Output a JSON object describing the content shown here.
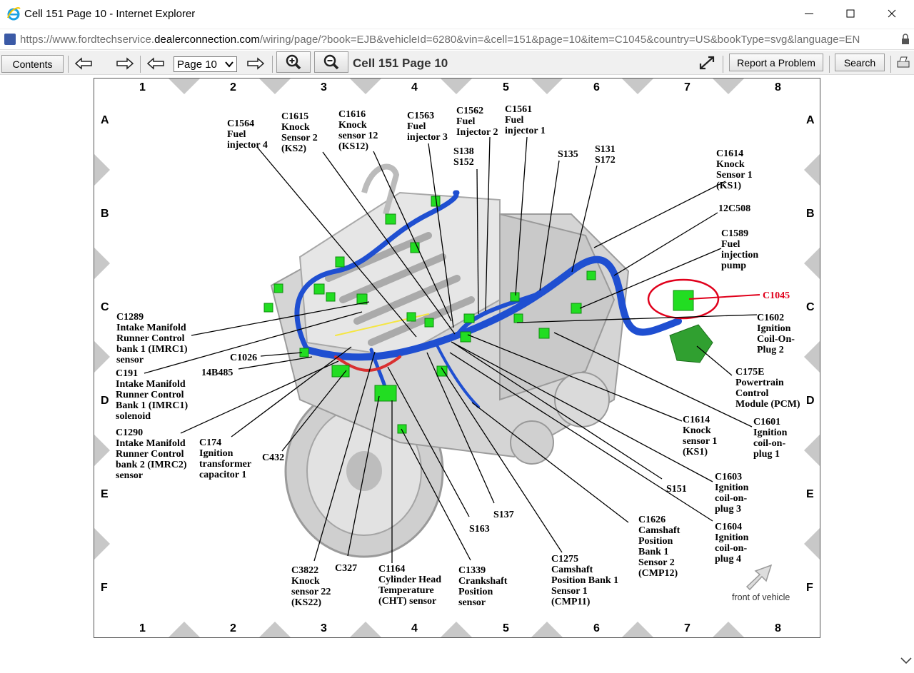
{
  "window": {
    "title": "Cell 151 Page 10 - Internet Explorer"
  },
  "address": {
    "prefix": "https://www.fordtechservice.",
    "domain": "dealerconnection.com",
    "suffix": "/wiring/page/?book=EJB&vehicleId=6280&vin=&cell=151&page=10&item=C1045&country=US&bookType=svg&language=EN"
  },
  "toolbar": {
    "contents_label": "Contents",
    "page_value": "Page 10",
    "cell_title": "Cell 151 Page 10",
    "report_label": "Report a Problem",
    "search_label": "Search"
  },
  "diagram": {
    "columns": [
      "1",
      "2",
      "3",
      "4",
      "5",
      "6",
      "7",
      "8"
    ],
    "rows": [
      "A",
      "B",
      "C",
      "D",
      "E",
      "F"
    ],
    "front_of_vehicle": "front of vehicle",
    "labels": {
      "c1564": "C1564\nFuel\ninjector 4",
      "c1615": "C1615\nKnock\nSensor 2\n(KS2)",
      "c1616": "C1616\nKnock\nsensor 12\n(KS12)",
      "c1563": "C1563\nFuel\ninjector 3",
      "c1562": "C1562\nFuel\nInjector 2",
      "c1561": "C1561\nFuel\ninjector 1",
      "s138": "S138\nS152",
      "s135": "S135",
      "s131": "S131\nS172",
      "c1614a": "C1614\nKnock\nSensor 1\n(KS1)",
      "c12c508": "12C508",
      "c1589": "C1589\nFuel\ninjection\npump",
      "c1045": "C1045",
      "c1602": "C1602\nIgnition\nCoil-On-\nPlug 2",
      "c175e": "C175E\nPowertrain\nControl\nModule (PCM)",
      "c1601": "C1601\nIgnition\ncoil-on-\nplug 1",
      "c1614b": "C1614\nKnock\nsensor 1\n(KS1)",
      "c1603": "C1603\nIgnition\ncoil-on-\nplug 3",
      "s151": "S151",
      "c1604": "C1604\nIgnition\ncoil-on-\nplug 4",
      "c1626": "C1626\nCamshaft\nPosition\nBank 1\nSensor 2\n(CMP12)",
      "c1275": "C1275\nCamshaft\nPosition Bank 1\nSensor 1\n(CMP11)",
      "s137": "S137",
      "s163": "S163",
      "c1339": "C1339\nCrankshaft\nPosition\nsensor",
      "c1164": "C1164\nCylinder Head\nTemperature\n(CHT) sensor",
      "c327": "C327",
      "c3822": "C3822\nKnock\nsensor 22\n(KS22)",
      "c432": "C432",
      "c174": "C174\nIgnition\ntransformer\ncapacitor 1",
      "c1290": "C1290\nIntake Manifold\nRunner Control\nbank 2 (IMRC2)\nsensor",
      "c191": "C191\nIntake Manifold\nRunner Control\nBank 1 (IMRC1)\nsolenoid",
      "c14b485": "14B485",
      "c1026": "C1026",
      "c1289": "C1289\nIntake Manifold\nRunner Control\nbank 1 (IMRC1)\nsensor"
    }
  },
  "colors": {
    "harness_blue": "#1f4fd1",
    "connector_green": "#22dd22",
    "highlight_red": "#e0001b"
  }
}
